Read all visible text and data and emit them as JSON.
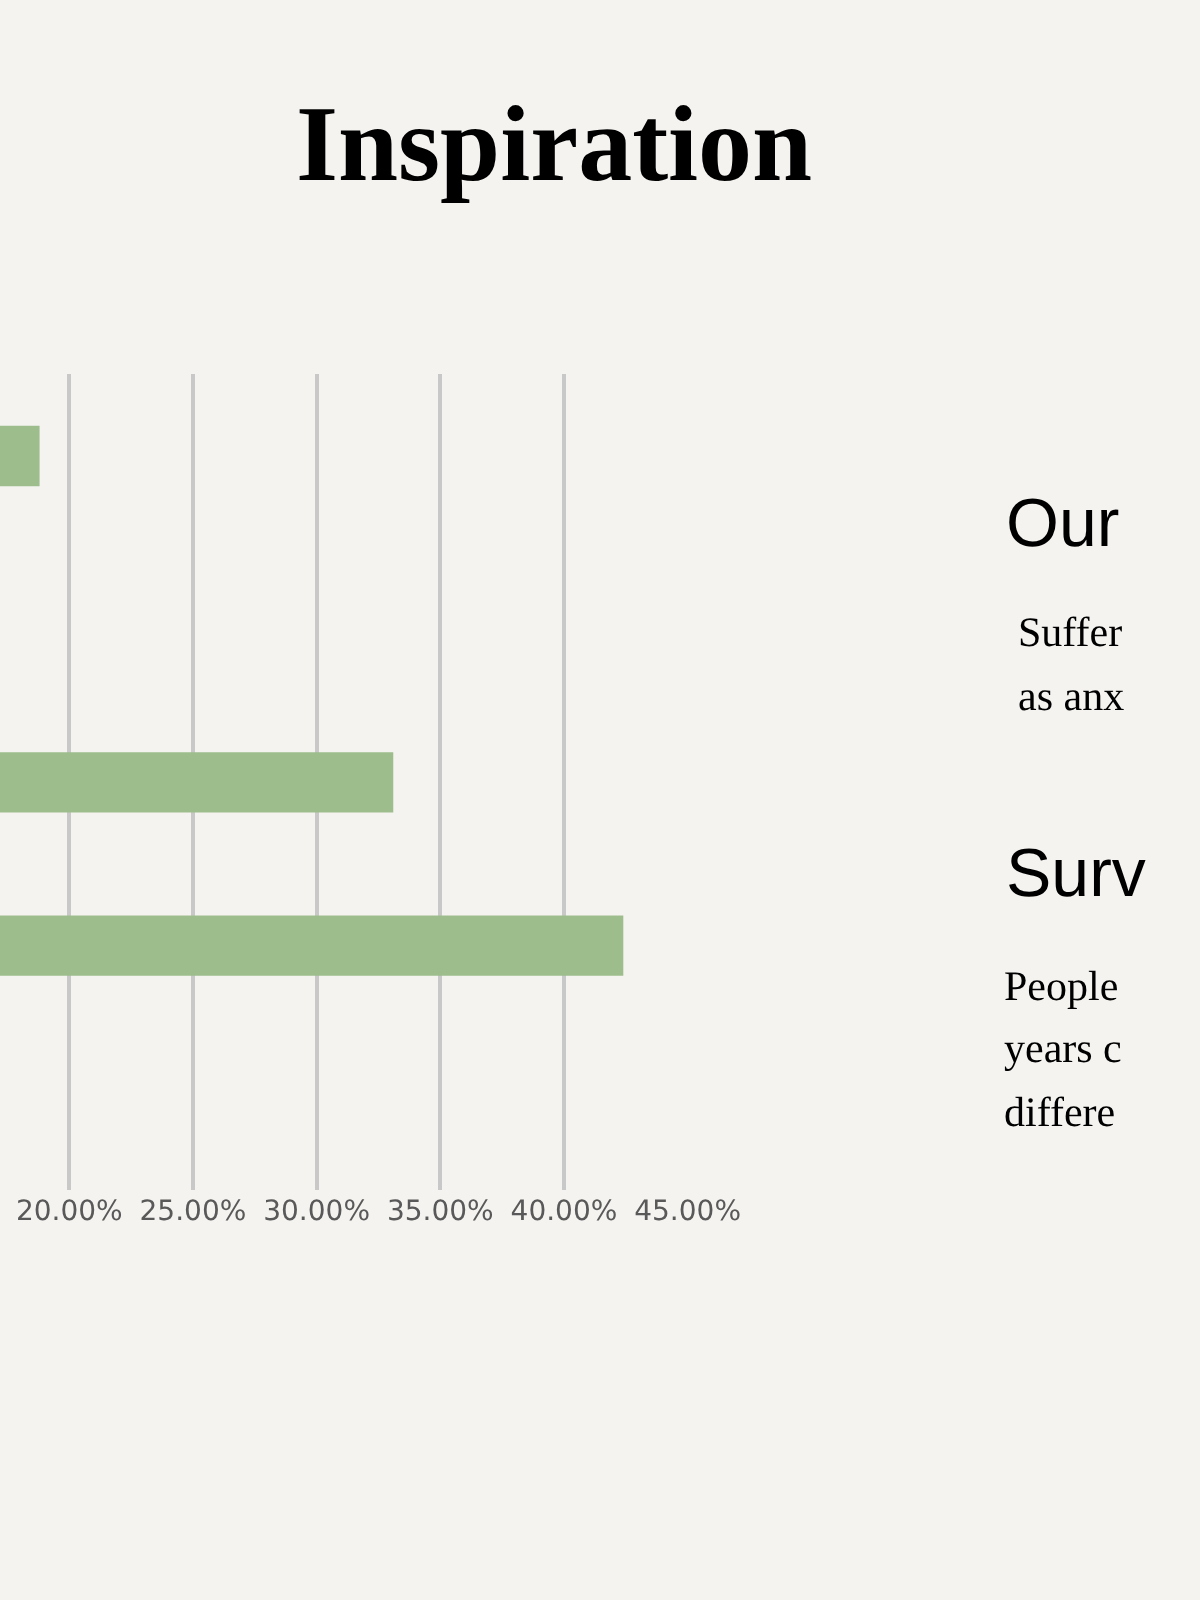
{
  "chart_data": {
    "type": "bar",
    "orientation": "horizontal",
    "title": "Inspiration",
    "categories": [
      null,
      null,
      null,
      null,
      null
    ],
    "values": [
      18.8,
      null,
      33.1,
      42.4,
      null
    ],
    "color": "#9dbe8c",
    "xlim": [
      17.2,
      45
    ],
    "xticks": [
      {
        "value": 20,
        "label": "20.00%"
      },
      {
        "value": 25,
        "label": "25.00%"
      },
      {
        "value": 30,
        "label": "30.00%"
      },
      {
        "value": 35,
        "label": "35.00%"
      },
      {
        "value": 40,
        "label": "40.00%"
      },
      {
        "value": 45,
        "label": "45.00%"
      }
    ],
    "grid": "x",
    "tick_labels": "x",
    "legend": false,
    "annotations": [
      "Our",
      "Suffer",
      "as anx",
      "Surv",
      "People",
      "years c",
      "differe"
    ]
  }
}
